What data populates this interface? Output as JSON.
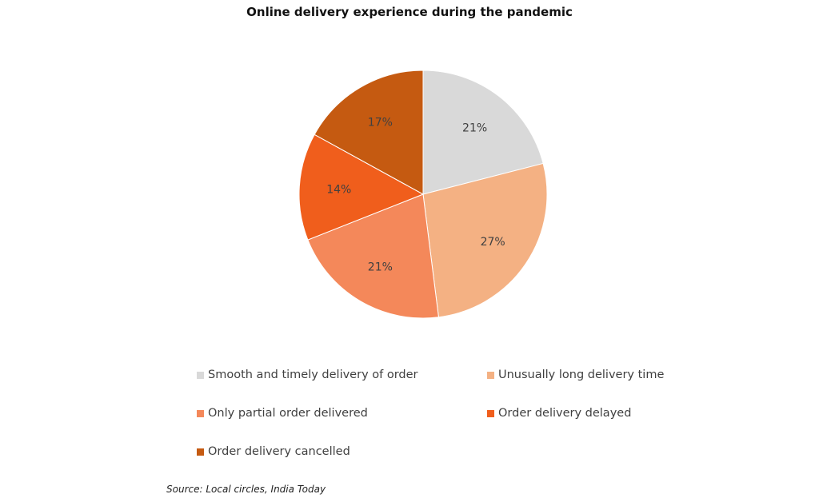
{
  "chart_data": {
    "type": "pie",
    "title": "Online delivery experience during the pandemic",
    "categories": [
      "Smooth and timely delivery of order",
      "Unusually long delivery time",
      "Only partial order delivered",
      "Order delivery delayed",
      "Order delivery cancelled"
    ],
    "values": [
      21,
      27,
      21,
      14,
      17
    ],
    "labels": [
      "21%",
      "27%",
      "21%",
      "14%",
      "17%"
    ],
    "colors": [
      "#D9D9D9",
      "#F4B183",
      "#F4885A",
      "#F05E1C",
      "#C55A11"
    ],
    "legend_position": "bottom"
  },
  "source": "Source: Local circles, India Today"
}
